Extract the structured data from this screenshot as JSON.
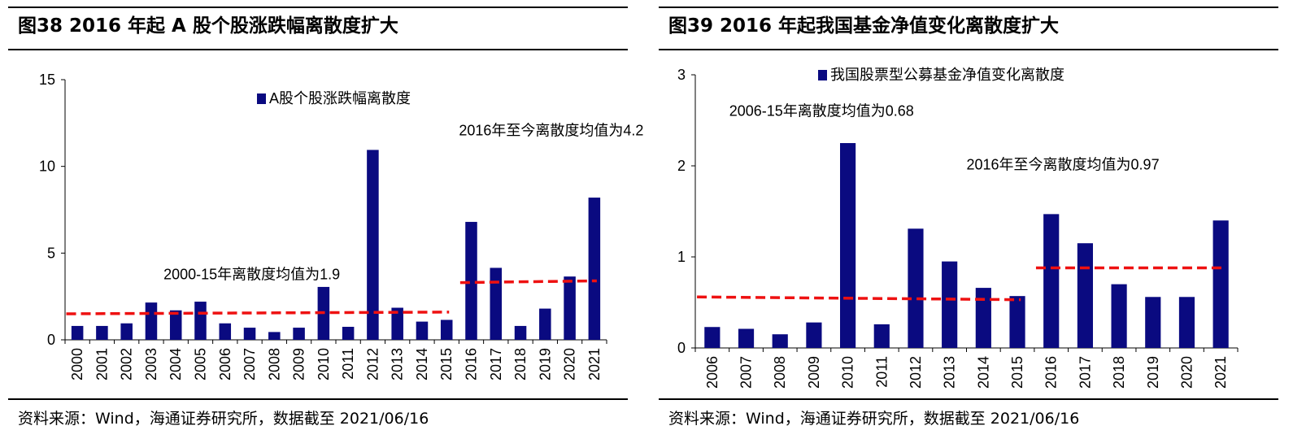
{
  "colors": {
    "bar": "#0a0a80",
    "avg_line": "#ee1111"
  },
  "left": {
    "title": "图38 2016 年起 A 股个股涨跌幅离散度扩大",
    "source": "资料来源：Wind，海通证券研究所，数据截至 2021/06/16",
    "chart_data": {
      "type": "bar",
      "categories": [
        "2000",
        "2001",
        "2002",
        "2003",
        "2004",
        "2005",
        "2006",
        "2007",
        "2008",
        "2009",
        "2010",
        "2011",
        "2012",
        "2013",
        "2014",
        "2015",
        "2016",
        "2017",
        "2018",
        "2019",
        "2020",
        "2021"
      ],
      "series": [
        {
          "name": "A股个股涨跌幅离散度",
          "values": [
            0.8,
            0.8,
            0.95,
            2.15,
            1.7,
            2.2,
            0.95,
            0.7,
            0.45,
            0.7,
            3.05,
            0.75,
            10.95,
            1.85,
            1.05,
            1.15,
            6.8,
            4.15,
            0.8,
            1.8,
            3.65,
            8.2
          ]
        }
      ],
      "ylim": [
        0,
        15
      ],
      "yticks": [
        0,
        5,
        10,
        15
      ],
      "legend": "top-center",
      "reference_lines": [
        {
          "from": "2000",
          "to": "2015",
          "y_start": 1.5,
          "y_end": 1.6,
          "style": "dashed"
        },
        {
          "from": "2016",
          "to": "2021",
          "y_start": 3.3,
          "y_end": 3.4,
          "style": "dashed"
        }
      ],
      "annotations": [
        {
          "text": "2000-15年离散度均值为1.9",
          "near": "2004",
          "y": 3.5
        },
        {
          "text": "2016年至今离散度均值为4.2",
          "near": "2016",
          "y": 11.8
        }
      ]
    }
  },
  "right": {
    "title": "图39 2016 年起我国基金净值变化离散度扩大",
    "source": "资料来源：Wind，海通证券研究所，数据截至 2021/06/16",
    "chart_data": {
      "type": "bar",
      "categories": [
        "2006",
        "2007",
        "2008",
        "2009",
        "2010",
        "2011",
        "2012",
        "2013",
        "2014",
        "2015",
        "2016",
        "2017",
        "2018",
        "2019",
        "2020",
        "2021"
      ],
      "series": [
        {
          "name": "我国股票型公募基金净值变化离散度",
          "values": [
            0.23,
            0.21,
            0.15,
            0.28,
            2.25,
            0.26,
            1.31,
            0.95,
            0.66,
            0.57,
            1.47,
            1.15,
            0.7,
            0.56,
            0.56,
            1.4
          ]
        }
      ],
      "ylim": [
        0,
        3
      ],
      "yticks": [
        0,
        1,
        2,
        3
      ],
      "legend": "top-center",
      "reference_lines": [
        {
          "from": "2006",
          "to": "2015",
          "y_start": 0.56,
          "y_end": 0.53,
          "style": "dashed"
        },
        {
          "from": "2016",
          "to": "2021",
          "y_start": 0.88,
          "y_end": 0.88,
          "style": "dashed"
        }
      ],
      "annotations": [
        {
          "text": "2006-15年离散度均值为0.68",
          "near": "2007",
          "y": 2.55
        },
        {
          "text": "2016年至今离散度均值为0.97",
          "near": "2014",
          "y": 1.96
        }
      ]
    }
  }
}
